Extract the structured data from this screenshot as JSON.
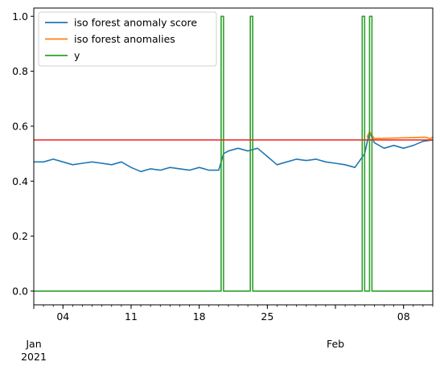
{
  "chart_data": {
    "type": "line",
    "title": "",
    "xlabel": "",
    "ylabel": "",
    "x_range": [
      "2021-01-01",
      "2021-02-11"
    ],
    "ylim": [
      -0.05,
      1.03
    ],
    "grid": false,
    "legend_placement": "top-left",
    "x_ticks": [
      {
        "date": "2021-01-01",
        "label": "Jan",
        "year": "2021"
      },
      {
        "date": "2021-01-04",
        "label": "04"
      },
      {
        "date": "2021-01-11",
        "label": "11"
      },
      {
        "date": "2021-01-18",
        "label": "18"
      },
      {
        "date": "2021-01-25",
        "label": "25"
      },
      {
        "date": "2021-02-01",
        "label": "Feb"
      },
      {
        "date": "2021-02-08",
        "label": "08"
      }
    ],
    "y_ticks": [
      {
        "value": 0.0,
        "label": "0.0"
      },
      {
        "value": 0.2,
        "label": "0.2"
      },
      {
        "value": 0.4,
        "label": "0.4"
      },
      {
        "value": 0.6,
        "label": "0.6"
      },
      {
        "value": 0.8,
        "label": "0.8"
      },
      {
        "value": 1.0,
        "label": "1.0"
      }
    ],
    "threshold": {
      "value": 0.55,
      "color": "#e8251e"
    },
    "series": [
      {
        "name": "iso forest anomaly score",
        "color": "#1f77b4",
        "points": [
          [
            "2021-01-01",
            0.47
          ],
          [
            "2021-01-02",
            0.47
          ],
          [
            "2021-01-03",
            0.48
          ],
          [
            "2021-01-04",
            0.47
          ],
          [
            "2021-01-05",
            0.46
          ],
          [
            "2021-01-06",
            0.465
          ],
          [
            "2021-01-07",
            0.47
          ],
          [
            "2021-01-08",
            0.465
          ],
          [
            "2021-01-09",
            0.46
          ],
          [
            "2021-01-10",
            0.47
          ],
          [
            "2021-01-11",
            0.45
          ],
          [
            "2021-01-12",
            0.435
          ],
          [
            "2021-01-13",
            0.445
          ],
          [
            "2021-01-14",
            0.44
          ],
          [
            "2021-01-15",
            0.45
          ],
          [
            "2021-01-16",
            0.445
          ],
          [
            "2021-01-17",
            0.44
          ],
          [
            "2021-01-18",
            0.45
          ],
          [
            "2021-01-19",
            0.44
          ],
          [
            "2021-01-20",
            0.44
          ],
          [
            "2021-01-20T12",
            0.5
          ],
          [
            "2021-01-21",
            0.51
          ],
          [
            "2021-01-22",
            0.52
          ],
          [
            "2021-01-23",
            0.51
          ],
          [
            "2021-01-24",
            0.52
          ],
          [
            "2021-01-25",
            0.49
          ],
          [
            "2021-01-26",
            0.46
          ],
          [
            "2021-01-27",
            0.47
          ],
          [
            "2021-01-28",
            0.48
          ],
          [
            "2021-01-29",
            0.475
          ],
          [
            "2021-01-30",
            0.48
          ],
          [
            "2021-01-31",
            0.47
          ],
          [
            "2021-02-01",
            0.465
          ],
          [
            "2021-02-02",
            0.46
          ],
          [
            "2021-02-03",
            0.45
          ],
          [
            "2021-02-04",
            0.5
          ],
          [
            "2021-02-04T12",
            0.58
          ],
          [
            "2021-02-05",
            0.54
          ],
          [
            "2021-02-06",
            0.52
          ],
          [
            "2021-02-07",
            0.53
          ],
          [
            "2021-02-08",
            0.52
          ],
          [
            "2021-02-09",
            0.53
          ],
          [
            "2021-02-10",
            0.545
          ],
          [
            "2021-02-11",
            0.55
          ]
        ]
      },
      {
        "name": "iso forest anomalies",
        "color": "#ff7f0e",
        "points": [
          [
            "2021-02-04T06",
            0.56
          ],
          [
            "2021-02-04T12",
            0.58
          ],
          [
            "2021-02-05",
            0.555
          ],
          [
            "2021-02-10T06",
            0.56
          ],
          [
            "2021-02-10T18",
            0.555
          ],
          [
            "2021-02-11",
            0.56
          ]
        ]
      },
      {
        "name": "y",
        "color": "#2ca02c",
        "points": [
          [
            "2021-01-01",
            0
          ],
          [
            "2021-01-20T06",
            0
          ],
          [
            "2021-01-20T06",
            1
          ],
          [
            "2021-01-20T12",
            1
          ],
          [
            "2021-01-20T12",
            0
          ],
          [
            "2021-01-23T06",
            0
          ],
          [
            "2021-01-23T06",
            1
          ],
          [
            "2021-01-23T12",
            1
          ],
          [
            "2021-01-23T12",
            0
          ],
          [
            "2021-02-03T18",
            0
          ],
          [
            "2021-02-03T18",
            1
          ],
          [
            "2021-02-04T00",
            1
          ],
          [
            "2021-02-04T00",
            0
          ],
          [
            "2021-02-04T12",
            0
          ],
          [
            "2021-02-04T12",
            1
          ],
          [
            "2021-02-04T18",
            1
          ],
          [
            "2021-02-04T18",
            0
          ],
          [
            "2021-02-11",
            0
          ]
        ]
      }
    ]
  }
}
